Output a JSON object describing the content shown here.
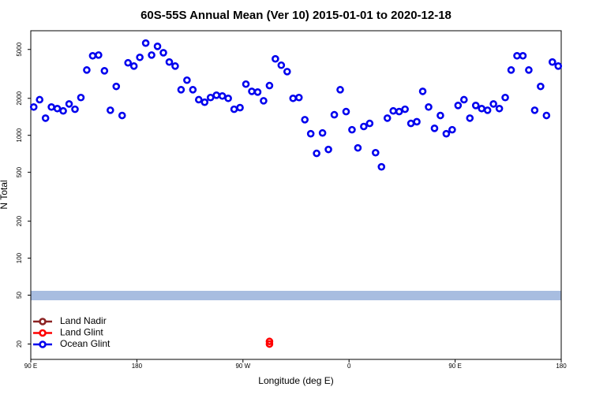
{
  "chart_data": {
    "type": "scatter",
    "title": "60S-55S Annual Mean (Ver 10)   2015-01-01 to 2020-12-18",
    "x_label": "Longitude (deg E)",
    "y_label": "N Total",
    "log_y": true,
    "legend_position": "lower left",
    "xlim": [
      90,
      540
    ],
    "ylim": [
      15,
      7100
    ],
    "xticks": [
      {
        "value": 90,
        "label": "90 E"
      },
      {
        "value": 180,
        "label": "180"
      },
      {
        "value": 270,
        "label": "90 W"
      },
      {
        "value": 360,
        "label": "0"
      },
      {
        "value": 450,
        "label": "90 E"
      },
      {
        "value": 540,
        "label": "180"
      }
    ],
    "yticks": [
      20,
      50,
      100,
      200,
      500,
      1000,
      2000,
      5000
    ],
    "series": [
      {
        "name": "Land Nadir",
        "color": "#8b2323",
        "x": [],
        "values": []
      },
      {
        "name": "Land Glint",
        "color": "#ff0000",
        "x": [
          292.5,
          292.5
        ],
        "values": [
          21,
          20
        ]
      },
      {
        "name": "Ocean Glint",
        "color": "#0000ee",
        "x": [
          92.5,
          97.5,
          102.5,
          107.5,
          112.5,
          117.5,
          122.5,
          127.5,
          132.5,
          137.5,
          142.5,
          147.5,
          152.5,
          157.5,
          162.5,
          167.5,
          172.5,
          177.5,
          182.5,
          187.5,
          192.5,
          197.5,
          202.5,
          207.5,
          212.5,
          217.5,
          222.5,
          227.5,
          232.5,
          237.5,
          242.5,
          247.5,
          252.5,
          257.5,
          262.5,
          267.5,
          272.5,
          277.5,
          282.5,
          287.5,
          292.5,
          297.5,
          302.5,
          307.5,
          312.5,
          317.5,
          322.5,
          327.5,
          332.5,
          337.5,
          342.5,
          347.5,
          352.5,
          357.5,
          362.5,
          367.5,
          372.5,
          377.5,
          382.5,
          387.5,
          392.5,
          397.5,
          402.5,
          407.5,
          412.5,
          417.5,
          422.5,
          427.5,
          432.5,
          437.5,
          442.5,
          447.5,
          452.5,
          457.5,
          462.5,
          467.5,
          472.5,
          477.5,
          482.5,
          487.5,
          492.5,
          497.5,
          502.5,
          507.5,
          512.5,
          517.5,
          522.5,
          527.5,
          532.5,
          537.5
        ],
        "values": [
          1700,
          1950,
          1380,
          1700,
          1650,
          1580,
          1800,
          1630,
          2030,
          3400,
          4440,
          4500,
          3350,
          1600,
          2500,
          1450,
          3890,
          3660,
          4310,
          5630,
          4500,
          5300,
          4700,
          3950,
          3660,
          2350,
          2810,
          2350,
          1950,
          1860,
          2030,
          2120,
          2090,
          2000,
          1630,
          1680,
          2610,
          2280,
          2250,
          1910,
          2540,
          4190,
          3720,
          3300,
          2000,
          2030,
          1340,
          1030,
          713,
          1045,
          767,
          1470,
          2350,
          1560,
          1110,
          790,
          1180,
          1250,
          722,
          554,
          1380,
          1580,
          1560,
          1630,
          1250,
          1290,
          2280,
          1700,
          1140,
          1450,
          1030,
          1110,
          1750,
          1950,
          1380,
          1750,
          1650,
          1600,
          1800,
          1650,
          2030,
          3400,
          4440,
          4440,
          3400,
          1600,
          2500,
          1450,
          3950,
          3660
        ]
      }
    ]
  }
}
